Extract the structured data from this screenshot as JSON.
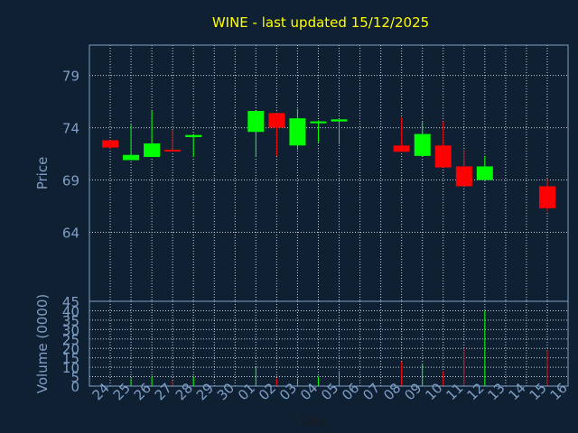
{
  "chart_data": {
    "type": "candlestick",
    "title": "WINE - last updated 15/12/2025",
    "xlabel": "Day",
    "colors": {
      "background": "#0f2033",
      "up": "#00ff00",
      "down": "#ff0000",
      "axis_text": "#7f9fc6",
      "title": "#ffff00",
      "grid": "#c8d0dc"
    },
    "price_panel": {
      "ylabel": "Price",
      "ylim": [
        57.4,
        81.9
      ],
      "yticks": [
        64,
        69,
        74,
        79
      ],
      "grid": true
    },
    "volume_panel": {
      "ylabel": "Volume (0000)",
      "ylim": [
        0,
        45
      ],
      "yticks": [
        0,
        5,
        10,
        15,
        20,
        25,
        30,
        35,
        40
      ],
      "top_label": "45",
      "grid": true
    },
    "x_ticks": [
      "24",
      "25",
      "26",
      "27",
      "28",
      "29",
      "30",
      "01",
      "02",
      "03",
      "04",
      "05",
      "06",
      "07",
      "08",
      "09",
      "10",
      "11",
      "12",
      "13",
      "14",
      "15",
      "16"
    ],
    "candles": [
      {
        "day": "24",
        "open": 72.8,
        "close": 72.1,
        "high": 72.8,
        "low": 72.0,
        "volume": 0
      },
      {
        "day": "25",
        "open": 70.9,
        "close": 71.4,
        "high": 74.3,
        "low": 70.9,
        "volume": 4
      },
      {
        "day": "26",
        "open": 71.2,
        "close": 72.5,
        "high": 75.6,
        "low": 71.2,
        "volume": 5
      },
      {
        "day": "27",
        "open": 71.9,
        "close": 71.8,
        "high": 73.8,
        "low": 71.8,
        "volume": 3
      },
      {
        "day": "28",
        "open": 73.1,
        "close": 73.3,
        "high": 73.4,
        "low": 71.2,
        "volume": 5
      },
      {
        "day": "01",
        "open": 73.6,
        "close": 75.6,
        "high": 75.6,
        "low": 71.2,
        "volume": 10
      },
      {
        "day": "02",
        "open": 75.4,
        "close": 74.0,
        "high": 75.4,
        "low": 71.3,
        "volume": 4
      },
      {
        "day": "03",
        "open": 72.3,
        "close": 74.9,
        "high": 75.8,
        "low": 71.9,
        "volume": 4
      },
      {
        "day": "04",
        "open": 74.5,
        "close": 74.6,
        "high": 74.7,
        "low": 72.6,
        "volume": 5
      },
      {
        "day": "05",
        "open": 74.6,
        "close": 74.8,
        "high": 74.8,
        "low": 72.4,
        "volume": 8
      },
      {
        "day": "08",
        "open": 72.3,
        "close": 71.7,
        "high": 75.0,
        "low": 71.7,
        "volume": 13
      },
      {
        "day": "09",
        "open": 71.3,
        "close": 73.4,
        "high": 74.6,
        "low": 71.3,
        "volume": 12
      },
      {
        "day": "10",
        "open": 72.3,
        "close": 70.2,
        "high": 74.6,
        "low": 70.2,
        "volume": 8
      },
      {
        "day": "11",
        "open": 70.3,
        "close": 68.4,
        "high": 71.9,
        "low": 68.4,
        "volume": 20
      },
      {
        "day": "12",
        "open": 69.0,
        "close": 70.3,
        "high": 71.3,
        "low": 69.0,
        "volume": 40
      },
      {
        "day": "15",
        "open": 68.4,
        "close": 66.3,
        "high": 69.1,
        "low": 66.0,
        "volume": 19
      }
    ]
  }
}
